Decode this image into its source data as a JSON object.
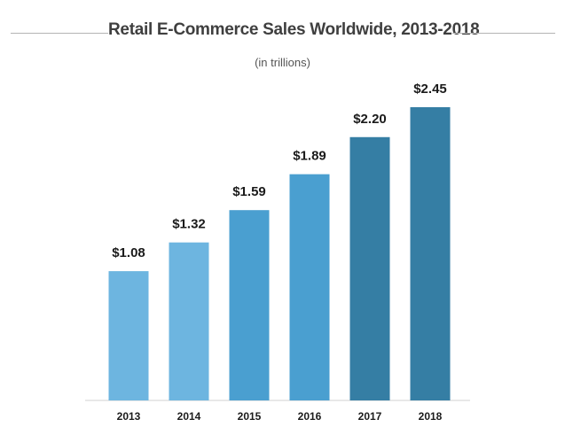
{
  "chart_data": {
    "type": "bar",
    "title": "Retail E-Commerce Sales Worldwide, 2013-2018",
    "subtitle": "(in trillions)",
    "categories": [
      "2013",
      "2014",
      "2015",
      "2016",
      "2017",
      "2018"
    ],
    "values": [
      1.08,
      1.32,
      1.59,
      1.89,
      2.2,
      2.45
    ],
    "data_labels": [
      "$1.08",
      "$1.32",
      "$1.59",
      "$1.89",
      "$2.20",
      "$2.45"
    ],
    "colors": [
      "#6db5e0",
      "#6db5e0",
      "#4a9fd0",
      "#4a9fd0",
      "#357ea4",
      "#357ea4"
    ],
    "ylim": [
      0,
      2.45
    ],
    "grid": false,
    "legend": "none"
  }
}
